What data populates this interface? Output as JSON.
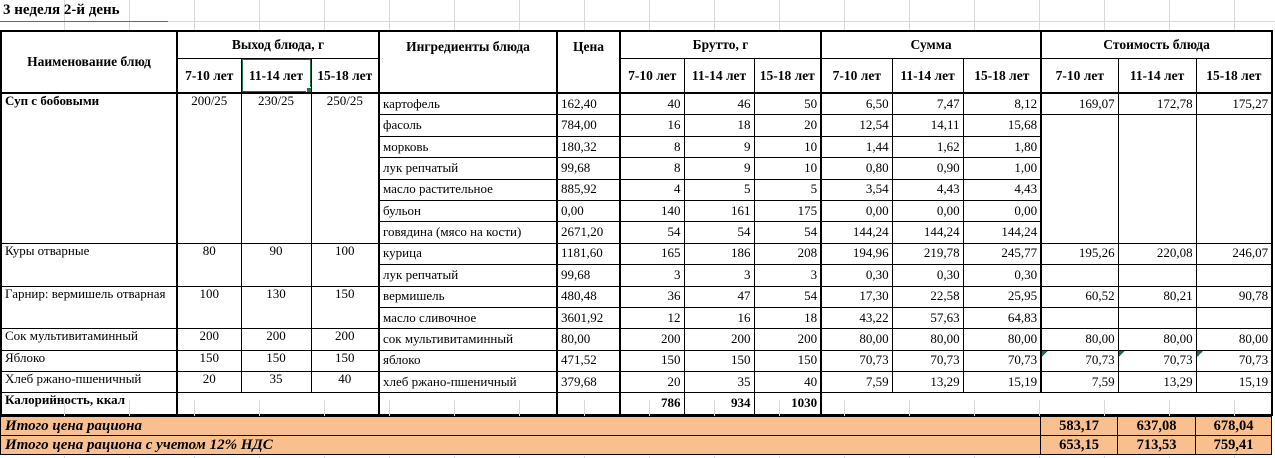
{
  "title": "3 неделя 2-й день",
  "selection": {
    "label": "11-14 лет",
    "section": "Выход блюда, г"
  },
  "colors": {
    "totals_fill": "#FABF8F",
    "selection_green": "#1F7246",
    "error_marker_green": "#1E7145",
    "table_border": "#000000",
    "faint_gridline": "#D9D9D9"
  },
  "table": {
    "headers": {
      "name": "Наименование блюд",
      "output": "Выход блюда, г",
      "ingredients": "Ингредиенты блюда",
      "price": "Цена",
      "gross": "Брутто, г",
      "sum": "Сумма",
      "cost": "Стоимость блюда",
      "ages": [
        "7-10 лет",
        "11-14 лет",
        "15-18 лет"
      ]
    },
    "dishes": [
      {
        "name": "Суп с бобовыми",
        "bold": true,
        "output": [
          "200/25",
          "230/25",
          "250/25"
        ],
        "cost": [
          "169,07",
          "172,78",
          "175,27"
        ],
        "ingredients": [
          {
            "name": "картофель",
            "price": "162,40",
            "gross": [
              "40",
              "46",
              "50"
            ],
            "sum": [
              "6,50",
              "7,47",
              "8,12"
            ]
          },
          {
            "name": "фасоль",
            "price": "784,00",
            "gross": [
              "16",
              "18",
              "20"
            ],
            "sum": [
              "12,54",
              "14,11",
              "15,68"
            ]
          },
          {
            "name": "морковь",
            "price": "180,32",
            "gross": [
              "8",
              "9",
              "10"
            ],
            "sum": [
              "1,44",
              "1,62",
              "1,80"
            ]
          },
          {
            "name": "лук репчатый",
            "price": "99,68",
            "gross": [
              "8",
              "9",
              "10"
            ],
            "sum": [
              "0,80",
              "0,90",
              "1,00"
            ]
          },
          {
            "name": "масло растительное",
            "price": "885,92",
            "gross": [
              "4",
              "5",
              "5"
            ],
            "sum": [
              "3,54",
              "4,43",
              "4,43"
            ]
          },
          {
            "name": "бульон",
            "price": "0,00",
            "gross": [
              "140",
              "161",
              "175"
            ],
            "sum": [
              "0,00",
              "0,00",
              "0,00"
            ]
          },
          {
            "name": "говядина (мясо на кости)",
            "price": "2671,20",
            "gross": [
              "54",
              "54",
              "54"
            ],
            "sum": [
              "144,24",
              "144,24",
              "144,24"
            ]
          }
        ]
      },
      {
        "name": "Куры отварные",
        "bold": false,
        "output": [
          "80",
          "90",
          "100"
        ],
        "cost": [
          "195,26",
          "220,08",
          "246,07"
        ],
        "ingredients": [
          {
            "name": "курица",
            "price": "1181,60",
            "gross": [
              "165",
              "186",
              "208"
            ],
            "sum": [
              "194,96",
              "219,78",
              "245,77"
            ]
          },
          {
            "name": "лук репчатый",
            "price": "99,68",
            "gross": [
              "3",
              "3",
              "3"
            ],
            "sum": [
              "0,30",
              "0,30",
              "0,30"
            ]
          }
        ]
      },
      {
        "name": "Гарнир: вермишель отварная",
        "bold": false,
        "output": [
          "100",
          "130",
          "150"
        ],
        "cost": [
          "60,52",
          "80,21",
          "90,78"
        ],
        "ingredients": [
          {
            "name": "вермишель",
            "price": "480,48",
            "gross": [
              "36",
              "47",
              "54"
            ],
            "sum": [
              "17,30",
              "22,58",
              "25,95"
            ]
          },
          {
            "name": "масло сливочное",
            "price": "3601,92",
            "gross": [
              "12",
              "16",
              "18"
            ],
            "sum": [
              "43,22",
              "57,63",
              "64,83"
            ]
          }
        ]
      },
      {
        "name": "Сок мультивитаминный",
        "bold": false,
        "output": [
          "200",
          "200",
          "200"
        ],
        "cost": [
          "80,00",
          "80,00",
          "80,00"
        ],
        "ingredients": [
          {
            "name": "сок мультивитаминный",
            "price": "80,00",
            "gross": [
              "200",
              "200",
              "200"
            ],
            "sum": [
              "80,00",
              "80,00",
              "80,00"
            ]
          }
        ]
      },
      {
        "name": "Яблоко",
        "bold": false,
        "output": [
          "150",
          "150",
          "150"
        ],
        "cost": [
          "70,73",
          "70,73",
          "70,73"
        ],
        "cost_error": true,
        "ingredients": [
          {
            "name": "яблоко",
            "price": "471,52",
            "gross": [
              "150",
              "150",
              "150"
            ],
            "sum": [
              "70,73",
              "70,73",
              "70,73"
            ]
          }
        ]
      },
      {
        "name": "Хлеб ржано-пшеничный",
        "bold": false,
        "output": [
          "20",
          "35",
          "40"
        ],
        "cost": [
          "7,59",
          "13,29",
          "15,19"
        ],
        "ingredients": [
          {
            "name": "хлеб ржано-пшеничный",
            "price": "379,68",
            "gross": [
              "20",
              "35",
              "40"
            ],
            "sum": [
              "7,59",
              "13,29",
              "15,19"
            ]
          }
        ]
      }
    ],
    "calories_row": {
      "label": "Калорийность, ккал",
      "values": [
        "786",
        "934",
        "1030"
      ]
    }
  },
  "totals": [
    {
      "label": "Итого цена рациона",
      "values": [
        "583,17",
        "637,08",
        "678,04"
      ]
    },
    {
      "label": "Итого цена рациона с учетом 12% НДС",
      "values": [
        "653,15",
        "713,53",
        "759,41"
      ]
    }
  ]
}
